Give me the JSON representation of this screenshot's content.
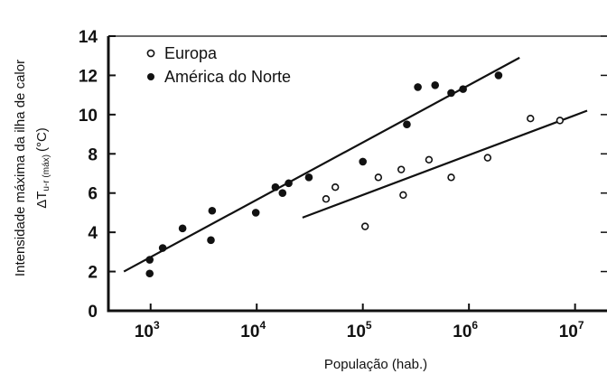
{
  "chart_data": {
    "type": "scatter",
    "xscale": "log",
    "xlim": [
      400,
      20000000
    ],
    "ylim": [
      0,
      14
    ],
    "yticks": [
      0,
      2,
      4,
      6,
      8,
      10,
      12,
      14
    ],
    "xticks": [
      {
        "value": 1000,
        "base": "10",
        "exp": "3"
      },
      {
        "value": 10000,
        "base": "10",
        "exp": "4"
      },
      {
        "value": 100000,
        "base": "10",
        "exp": "5"
      },
      {
        "value": 1000000,
        "base": "10",
        "exp": "6"
      },
      {
        "value": 10000000,
        "base": "10",
        "exp": "7"
      }
    ],
    "xlabel": "População (hab.)",
    "ylabel": {
      "line1": "Intensidade máxima da ilha de calor",
      "delta_T": "ΔT",
      "subscript": "u-r (máx)",
      "unit": "(°C)"
    },
    "legend_position": "top-left",
    "series": [
      {
        "name": "Europa",
        "marker": "open-circle",
        "points": [
          [
            45000,
            5.7
          ],
          [
            55000,
            6.3
          ],
          [
            105000,
            4.3
          ],
          [
            140000,
            6.8
          ],
          [
            230000,
            7.2
          ],
          [
            240000,
            5.9
          ],
          [
            420000,
            7.7
          ],
          [
            680000,
            6.8
          ],
          [
            1500000,
            7.8
          ],
          [
            3800000,
            9.8
          ],
          [
            7200000,
            9.7
          ]
        ],
        "trend": [
          [
            27000,
            4.75
          ],
          [
            13000000,
            10.2
          ]
        ]
      },
      {
        "name": "América do Norte",
        "marker": "filled-circle",
        "points": [
          [
            980,
            1.9
          ],
          [
            980,
            2.6
          ],
          [
            1300,
            3.2
          ],
          [
            2000,
            4.2
          ],
          [
            3700,
            3.6
          ],
          [
            3800,
            5.1
          ],
          [
            9800,
            5.0
          ],
          [
            15000,
            6.3
          ],
          [
            17500,
            6.0
          ],
          [
            20000,
            6.5
          ],
          [
            31000,
            6.8
          ],
          [
            100000,
            7.6
          ],
          [
            260000,
            9.5
          ],
          [
            330000,
            11.4
          ],
          [
            480000,
            11.5
          ],
          [
            680000,
            11.1
          ],
          [
            880000,
            11.3
          ],
          [
            1900000,
            12.0
          ]
        ],
        "trend": [
          [
            560,
            2.0
          ],
          [
            3000000,
            12.9
          ]
        ]
      }
    ]
  }
}
